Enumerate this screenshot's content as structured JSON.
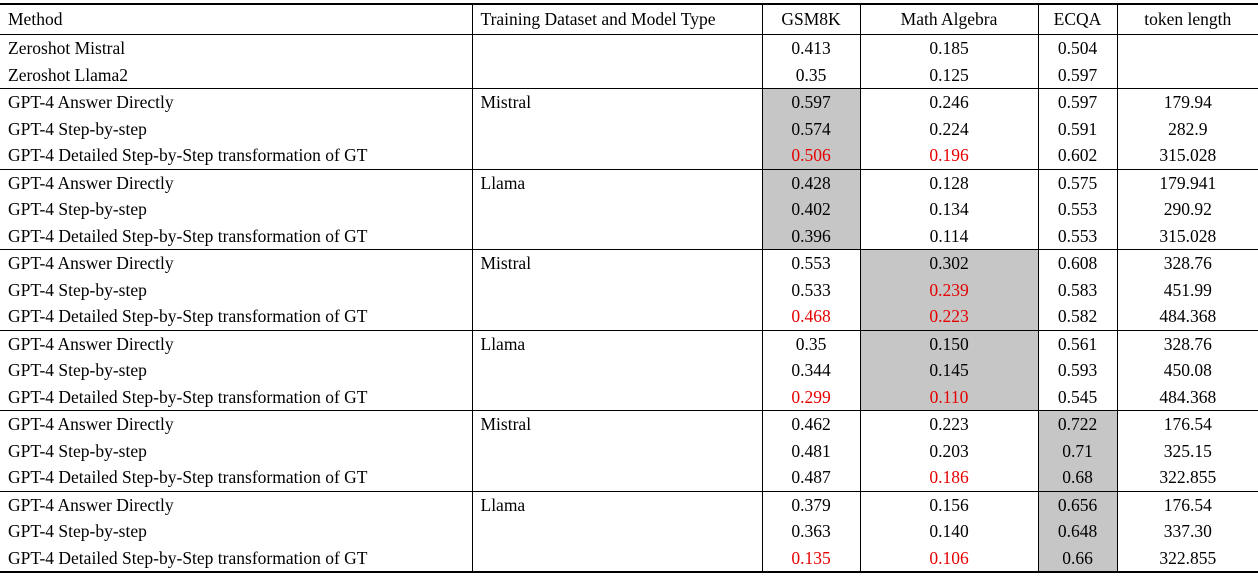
{
  "colors": {
    "highlight_bg": "#c6c6c6",
    "red_text": "#e60000",
    "border": "#000000",
    "background": "#ffffff"
  },
  "table": {
    "columns": [
      {
        "label": "Method"
      },
      {
        "label": "Training Dataset and Model Type"
      },
      {
        "label": "GSM8K"
      },
      {
        "label": "Math Algebra"
      },
      {
        "label": "ECQA"
      },
      {
        "label": "token length"
      }
    ],
    "rows": [
      {
        "cells": [
          {
            "t": "Zeroshot Mistral"
          },
          {
            "t": ""
          },
          {
            "t": "0.413"
          },
          {
            "t": "0.185"
          },
          {
            "t": "0.504"
          },
          {
            "t": ""
          }
        ]
      },
      {
        "cells": [
          {
            "t": "Zeroshot Llama2"
          },
          {
            "t": ""
          },
          {
            "t": "0.35"
          },
          {
            "t": "0.125"
          },
          {
            "t": "0.597"
          },
          {
            "t": ""
          }
        ]
      },
      {
        "section_start": true,
        "cells": [
          {
            "t": "GPT-4 Answer Directly"
          },
          {
            "t": "Mistral"
          },
          {
            "t": "0.597",
            "gray": true
          },
          {
            "t": "0.246"
          },
          {
            "t": "0.597"
          },
          {
            "t": "179.94"
          }
        ]
      },
      {
        "cells": [
          {
            "t": "GPT-4 Step-by-step"
          },
          {
            "t": ""
          },
          {
            "t": "0.574",
            "gray": true
          },
          {
            "t": "0.224"
          },
          {
            "t": "0.591"
          },
          {
            "t": "282.9"
          }
        ]
      },
      {
        "cells": [
          {
            "t": "GPT-4 Detailed Step-by-Step transformation of GT"
          },
          {
            "t": ""
          },
          {
            "t": "0.506",
            "gray": true,
            "red": true
          },
          {
            "t": "0.196",
            "red": true
          },
          {
            "t": "0.602"
          },
          {
            "t": "315.028"
          }
        ]
      },
      {
        "section_start": true,
        "cells": [
          {
            "t": "GPT-4 Answer Directly"
          },
          {
            "t": "Llama"
          },
          {
            "t": "0.428",
            "gray": true
          },
          {
            "t": "0.128"
          },
          {
            "t": "0.575"
          },
          {
            "t": "179.941"
          }
        ]
      },
      {
        "cells": [
          {
            "t": "GPT-4 Step-by-step"
          },
          {
            "t": ""
          },
          {
            "t": "0.402",
            "gray": true
          },
          {
            "t": "0.134"
          },
          {
            "t": "0.553"
          },
          {
            "t": "290.92"
          }
        ]
      },
      {
        "cells": [
          {
            "t": "GPT-4 Detailed Step-by-Step transformation of GT"
          },
          {
            "t": ""
          },
          {
            "t": "0.396",
            "gray": true
          },
          {
            "t": "0.114"
          },
          {
            "t": "0.553"
          },
          {
            "t": "315.028"
          }
        ]
      },
      {
        "section_start": true,
        "cells": [
          {
            "t": "GPT-4 Answer Directly"
          },
          {
            "t": "Mistral"
          },
          {
            "t": "0.553"
          },
          {
            "t": "0.302",
            "gray": true
          },
          {
            "t": "0.608"
          },
          {
            "t": "328.76"
          }
        ]
      },
      {
        "cells": [
          {
            "t": "GPT-4 Step-by-step"
          },
          {
            "t": ""
          },
          {
            "t": "0.533"
          },
          {
            "t": "0.239",
            "gray": true,
            "red": true
          },
          {
            "t": "0.583"
          },
          {
            "t": "451.99"
          }
        ]
      },
      {
        "cells": [
          {
            "t": "GPT-4 Detailed Step-by-Step transformation of GT"
          },
          {
            "t": ""
          },
          {
            "t": "0.468",
            "red": true
          },
          {
            "t": "0.223",
            "gray": true,
            "red": true
          },
          {
            "t": "0.582"
          },
          {
            "t": "484.368"
          }
        ]
      },
      {
        "section_start": true,
        "cells": [
          {
            "t": "GPT-4 Answer Directly"
          },
          {
            "t": "Llama"
          },
          {
            "t": "0.35"
          },
          {
            "t": "0.150",
            "gray": true
          },
          {
            "t": "0.561"
          },
          {
            "t": "328.76"
          }
        ]
      },
      {
        "cells": [
          {
            "t": "GPT-4 Step-by-step"
          },
          {
            "t": ""
          },
          {
            "t": "0.344"
          },
          {
            "t": "0.145",
            "gray": true
          },
          {
            "t": "0.593"
          },
          {
            "t": "450.08"
          }
        ]
      },
      {
        "cells": [
          {
            "t": "GPT-4 Detailed Step-by-Step transformation of GT"
          },
          {
            "t": ""
          },
          {
            "t": "0.299",
            "red": true
          },
          {
            "t": "0.110",
            "gray": true,
            "red": true
          },
          {
            "t": "0.545"
          },
          {
            "t": "484.368"
          }
        ]
      },
      {
        "section_start": true,
        "cells": [
          {
            "t": "GPT-4 Answer Directly"
          },
          {
            "t": "Mistral"
          },
          {
            "t": "0.462"
          },
          {
            "t": "0.223"
          },
          {
            "t": "0.722",
            "gray": true
          },
          {
            "t": "176.54"
          }
        ]
      },
      {
        "cells": [
          {
            "t": "GPT-4 Step-by-step"
          },
          {
            "t": ""
          },
          {
            "t": "0.481"
          },
          {
            "t": "0.203"
          },
          {
            "t": "0.71",
            "gray": true
          },
          {
            "t": "325.15"
          }
        ]
      },
      {
        "cells": [
          {
            "t": "GPT-4 Detailed Step-by-Step transformation of GT"
          },
          {
            "t": ""
          },
          {
            "t": "0.487"
          },
          {
            "t": "0.186",
            "red": true
          },
          {
            "t": "0.68",
            "gray": true
          },
          {
            "t": "322.855"
          }
        ]
      },
      {
        "section_start": true,
        "cells": [
          {
            "t": "GPT-4 Answer Directly"
          },
          {
            "t": "Llama"
          },
          {
            "t": "0.379"
          },
          {
            "t": "0.156"
          },
          {
            "t": "0.656",
            "gray": true
          },
          {
            "t": "176.54"
          }
        ]
      },
      {
        "cells": [
          {
            "t": "GPT-4 Step-by-step"
          },
          {
            "t": ""
          },
          {
            "t": "0.363"
          },
          {
            "t": "0.140"
          },
          {
            "t": "0.648",
            "gray": true
          },
          {
            "t": "337.30"
          }
        ]
      },
      {
        "cells": [
          {
            "t": "GPT-4 Detailed Step-by-Step transformation of GT"
          },
          {
            "t": ""
          },
          {
            "t": "0.135",
            "red": true
          },
          {
            "t": "0.106",
            "red": true
          },
          {
            "t": "0.66",
            "gray": true
          },
          {
            "t": "322.855"
          }
        ]
      }
    ]
  }
}
